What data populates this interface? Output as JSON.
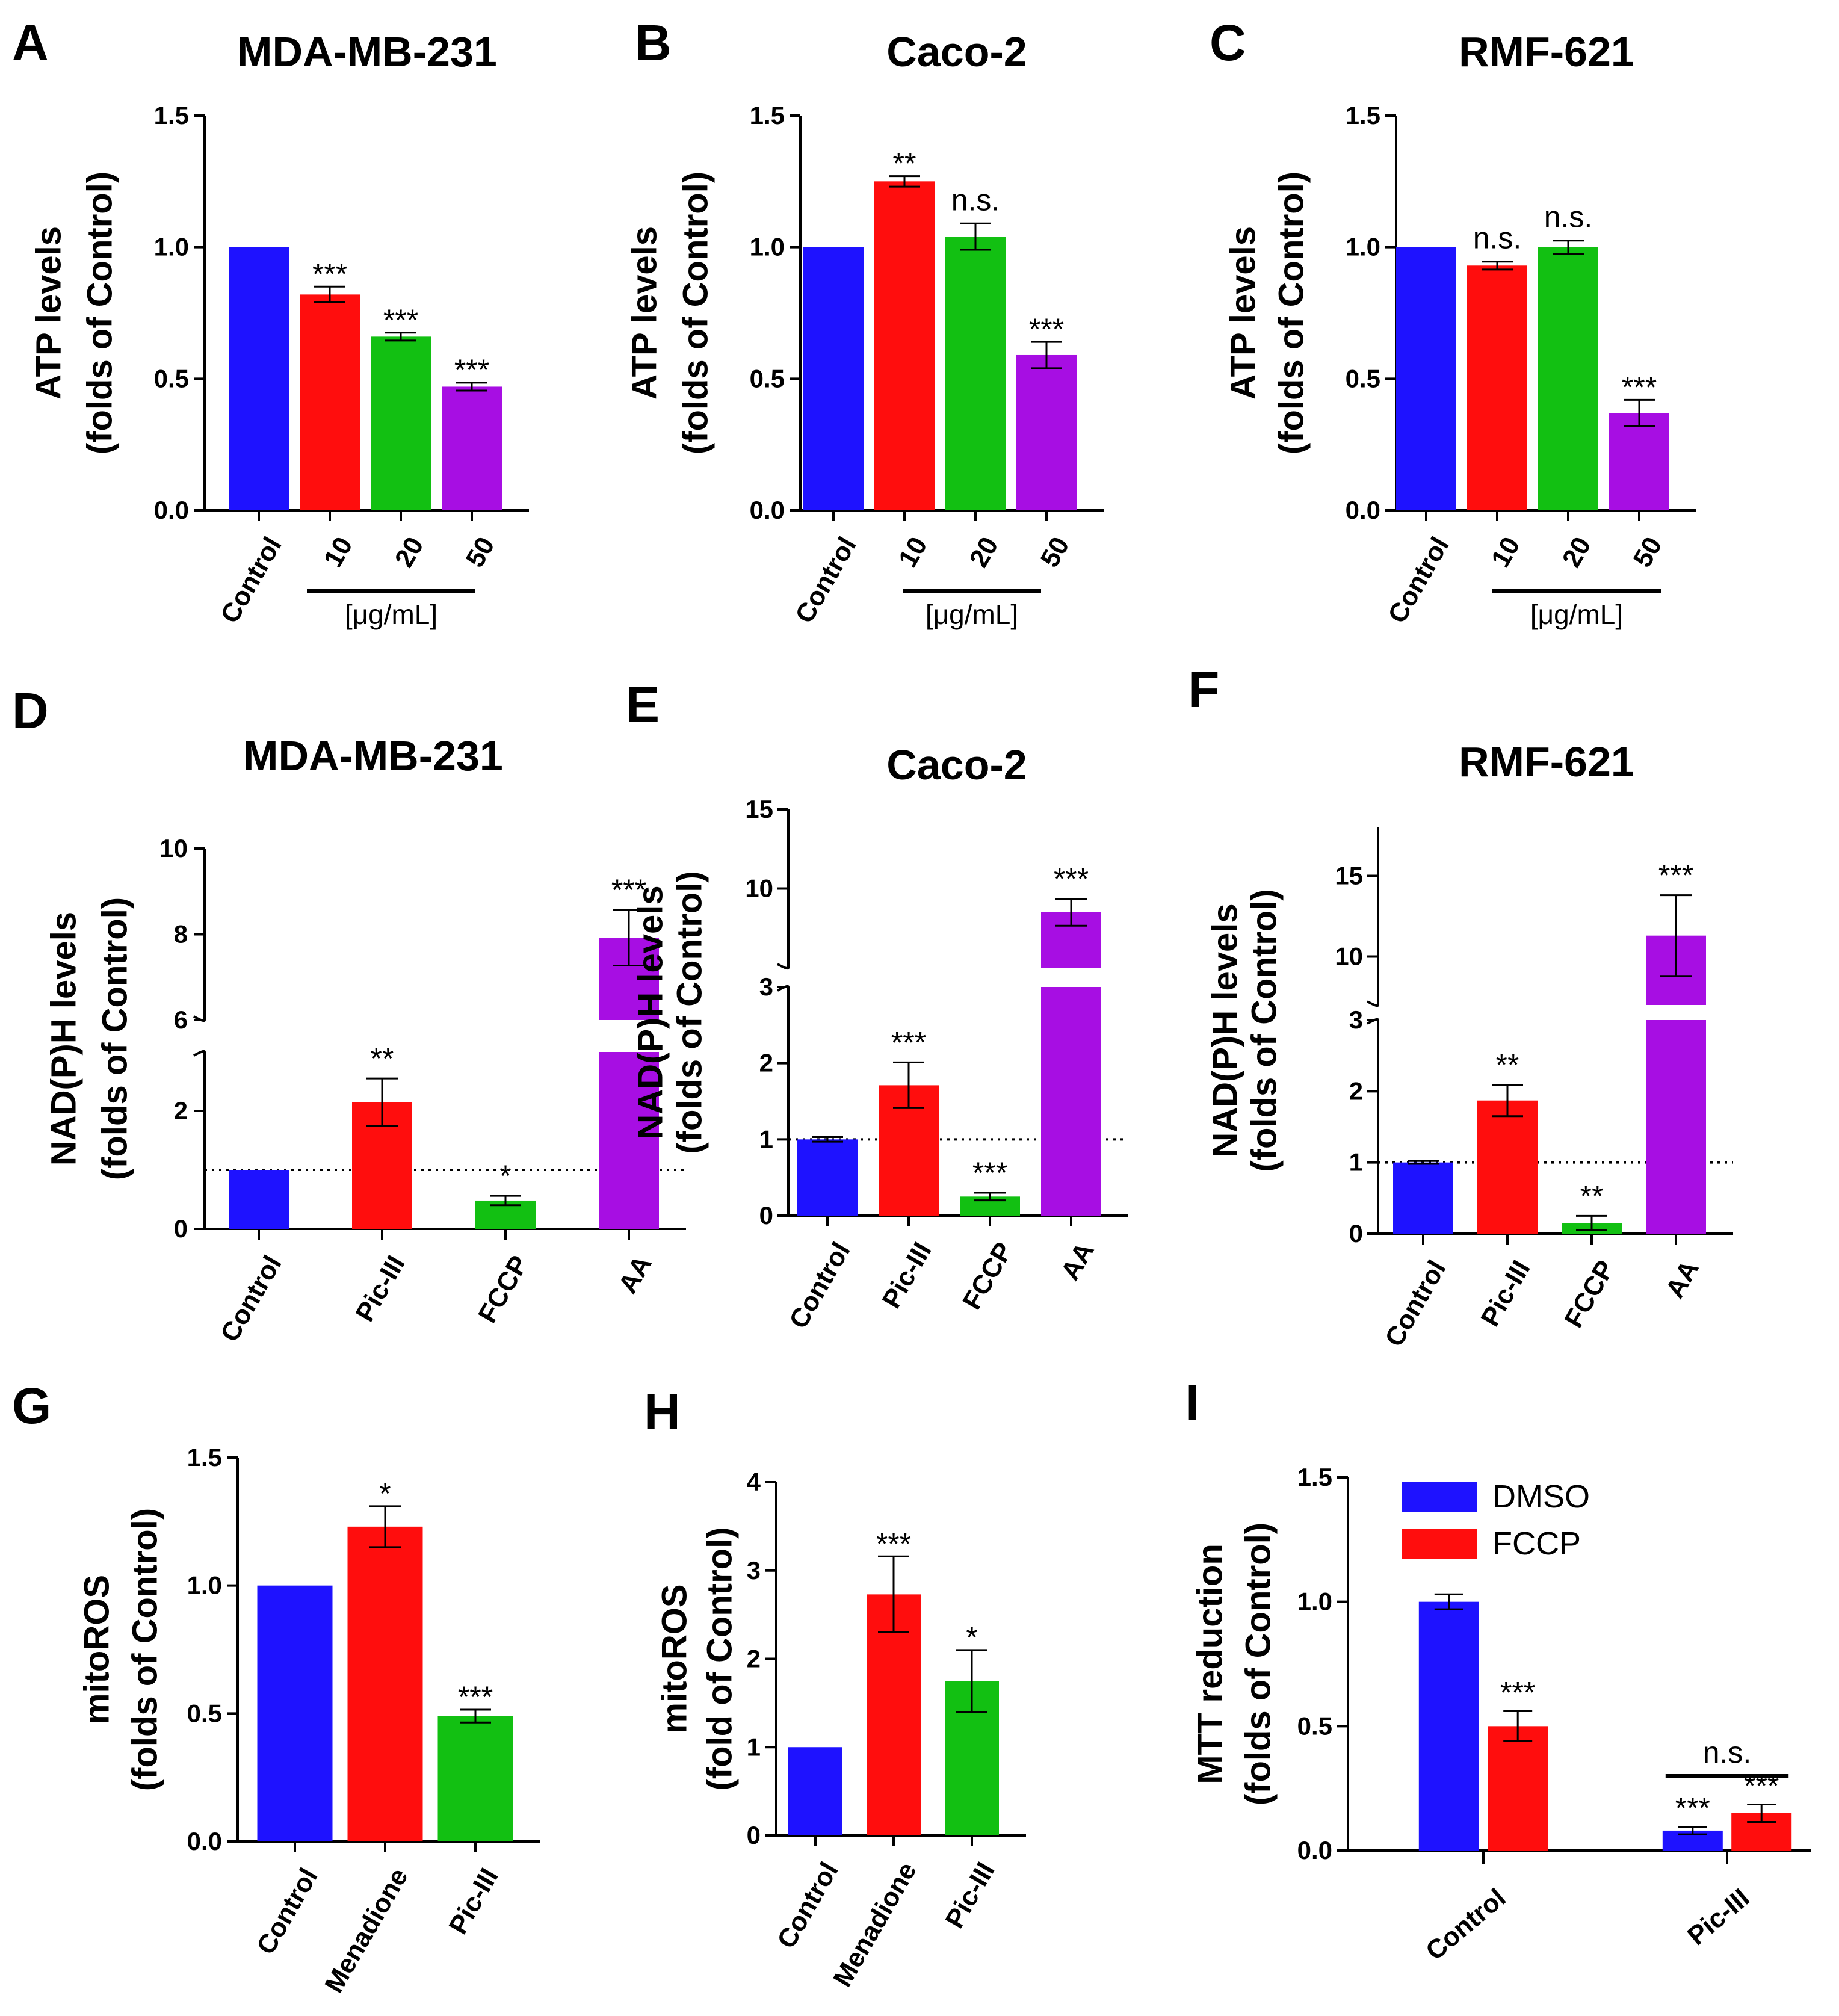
{
  "chart_data": [
    {
      "panel": "A",
      "title": "MDA-MB-231",
      "type": "bar",
      "ylabel": [
        "ATP levels",
        "(folds of Control)"
      ],
      "categories": [
        "Control",
        "10",
        "20",
        "50"
      ],
      "group_label": "[μg/mL]",
      "values": [
        1.0,
        0.82,
        0.66,
        0.47
      ],
      "errors": [
        0,
        0.03,
        0.015,
        0.015
      ],
      "significance": [
        "",
        "***",
        "***",
        "***"
      ],
      "colors": [
        "#1e12ff",
        "#ff0d0d",
        "#12c012",
        "#a70ee3"
      ],
      "ylim": [
        0,
        1.5
      ],
      "yticks": [
        "0.0",
        "0.5",
        "1.0",
        "1.5"
      ]
    },
    {
      "panel": "B",
      "title": "Caco-2",
      "type": "bar",
      "ylabel": [
        "ATP levels",
        "(folds of Control)"
      ],
      "categories": [
        "Control",
        "10",
        "20",
        "50"
      ],
      "group_label": "[μg/mL]",
      "values": [
        1.0,
        1.25,
        1.04,
        0.59
      ],
      "errors": [
        0,
        0.02,
        0.05,
        0.05
      ],
      "significance": [
        "",
        "**",
        "n.s.",
        "***"
      ],
      "colors": [
        "#1e12ff",
        "#ff0d0d",
        "#12c012",
        "#a70ee3"
      ],
      "ylim": [
        0,
        1.5
      ],
      "yticks": [
        "0.0",
        "0.5",
        "1.0",
        "1.5"
      ]
    },
    {
      "panel": "C",
      "title": "RMF-621",
      "type": "bar",
      "ylabel": [
        "ATP levels",
        "(folds of Control)"
      ],
      "categories": [
        "Control",
        "10",
        "20",
        "50"
      ],
      "group_label": "[μg/mL]",
      "values": [
        1.0,
        0.93,
        1.0,
        0.37
      ],
      "errors": [
        0,
        0.015,
        0.025,
        0.05
      ],
      "significance": [
        "",
        "n.s.",
        "n.s.",
        "***"
      ],
      "colors": [
        "#1e12ff",
        "#ff0d0d",
        "#12c012",
        "#a70ee3"
      ],
      "ylim": [
        0,
        1.5
      ],
      "yticks": [
        "0.0",
        "0.5",
        "1.0",
        "1.5"
      ]
    },
    {
      "panel": "D",
      "title": "MDA-MB-231",
      "type": "bar",
      "ylabel": [
        "NAD(P)H levels",
        "(folds of Control)"
      ],
      "categories": [
        "Control",
        "Pic-III",
        "FCCP",
        "AA"
      ],
      "values": [
        1.0,
        2.15,
        0.48,
        7.92
      ],
      "errors": [
        0,
        0.4,
        0.08,
        0.65
      ],
      "significance": [
        "",
        "**",
        "*",
        "***"
      ],
      "colors": [
        "#1e12ff",
        "#ff0d0d",
        "#12c012",
        "#a70ee3"
      ],
      "reference_line": 1,
      "broken_axis": {
        "lower": [
          0,
          3
        ],
        "upper": [
          6,
          10
        ]
      },
      "yticks_lower": [
        "0",
        "2"
      ],
      "yticks_upper": [
        "6",
        "8",
        "10"
      ]
    },
    {
      "panel": "E",
      "title": "Caco-2",
      "type": "bar",
      "ylabel": [
        "NAD(P)H levels",
        "(folds of Control)"
      ],
      "categories": [
        "Control",
        "Pic-III",
        "FCCP",
        "AA"
      ],
      "values": [
        1.0,
        1.71,
        0.25,
        8.5
      ],
      "errors": [
        0.03,
        0.3,
        0.05,
        0.85
      ],
      "significance": [
        "",
        "***",
        "***",
        "***"
      ],
      "colors": [
        "#1e12ff",
        "#ff0d0d",
        "#12c012",
        "#a70ee3"
      ],
      "reference_line": 1,
      "broken_axis": {
        "lower": [
          0,
          3
        ],
        "upper": [
          5,
          15
        ]
      },
      "yticks_lower": [
        "0",
        "1",
        "2",
        "3"
      ],
      "yticks_upper": [
        "10",
        "15"
      ]
    },
    {
      "panel": "F",
      "title": "RMF-621",
      "type": "bar",
      "ylabel": [
        "NAD(P)H levels",
        "(folds of Control)"
      ],
      "categories": [
        "Control",
        "Pic-III",
        "FCCP",
        "AA"
      ],
      "values": [
        1.0,
        1.87,
        0.15,
        11.3
      ],
      "errors": [
        0.02,
        0.22,
        0.1,
        2.5
      ],
      "significance": [
        "",
        "**",
        "**",
        "***"
      ],
      "colors": [
        "#1e12ff",
        "#ff0d0d",
        "#12c012",
        "#a70ee3"
      ],
      "reference_line": 1,
      "broken_axis": {
        "lower": [
          0,
          3
        ],
        "upper": [
          7,
          18
        ]
      },
      "yticks_lower": [
        "0",
        "1",
        "2",
        "3"
      ],
      "yticks_upper": [
        "10",
        "15"
      ]
    },
    {
      "panel": "G",
      "type": "bar",
      "ylabel": [
        "mitoROS",
        "(folds of Control)"
      ],
      "categories": [
        "Control",
        "Menadione",
        "Pic-III"
      ],
      "values": [
        1.0,
        1.23,
        0.49
      ],
      "errors": [
        0,
        0.08,
        0.025
      ],
      "significance": [
        "",
        "*",
        "***"
      ],
      "colors": [
        "#1e12ff",
        "#ff0d0d",
        "#12c012"
      ],
      "ylim": [
        0,
        1.5
      ],
      "yticks": [
        "0.0",
        "0.5",
        "1.0",
        "1.5"
      ]
    },
    {
      "panel": "H",
      "type": "bar",
      "ylabel": [
        "mitoROS",
        "(fold of Control)"
      ],
      "categories": [
        "Control",
        "Menadione",
        "Pic-III"
      ],
      "values": [
        1.0,
        2.73,
        1.75
      ],
      "errors": [
        0,
        0.43,
        0.35
      ],
      "significance": [
        "",
        "***",
        "*"
      ],
      "colors": [
        "#1e12ff",
        "#ff0d0d",
        "#12c012"
      ],
      "ylim": [
        0,
        4
      ],
      "yticks": [
        "0",
        "1",
        "2",
        "3",
        "4"
      ]
    },
    {
      "panel": "I",
      "type": "bar",
      "ylabel": [
        "MTT reduction",
        "(folds of Control)"
      ],
      "categories": [
        "Control",
        "Pic-III"
      ],
      "series": [
        {
          "name": "DMSO",
          "color": "#1e12ff",
          "values": [
            1.0,
            0.08
          ],
          "errors": [
            0.03,
            0.015
          ]
        },
        {
          "name": "FCCP",
          "color": "#ff0d0d",
          "values": [
            0.5,
            0.15
          ],
          "errors": [
            0.06,
            0.035
          ]
        }
      ],
      "significance": [
        [
          "",
          "***"
        ],
        [
          "***",
          "***"
        ]
      ],
      "comparison": "n.s.",
      "legend": "top-left",
      "ylim": [
        0,
        1.5
      ],
      "yticks": [
        "0.0",
        "0.5",
        "1.0",
        "1.5"
      ]
    }
  ]
}
